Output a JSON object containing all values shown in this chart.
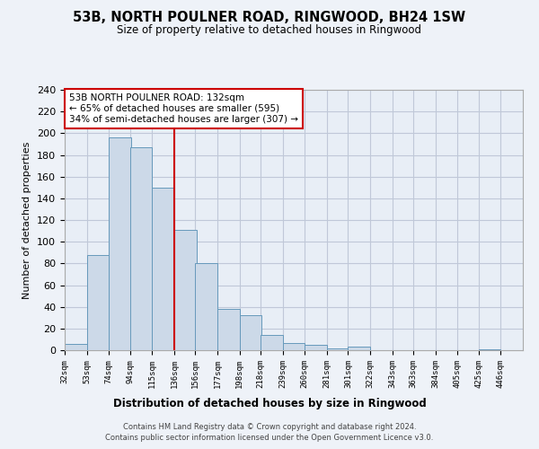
{
  "title": "53B, NORTH POULNER ROAD, RINGWOOD, BH24 1SW",
  "subtitle": "Size of property relative to detached houses in Ringwood",
  "xlabel": "Distribution of detached houses by size in Ringwood",
  "ylabel": "Number of detached properties",
  "bar_left_edges": [
    32,
    53,
    74,
    94,
    115,
    136,
    156,
    177,
    198,
    218,
    239,
    260,
    281,
    301,
    322,
    343,
    363,
    384,
    405,
    425
  ],
  "bar_heights": [
    6,
    88,
    196,
    187,
    150,
    111,
    80,
    38,
    32,
    14,
    7,
    5,
    2,
    3,
    0,
    0,
    0,
    0,
    0,
    1
  ],
  "bin_width": 21,
  "tick_labels": [
    "32sqm",
    "53sqm",
    "74sqm",
    "94sqm",
    "115sqm",
    "136sqm",
    "156sqm",
    "177sqm",
    "198sqm",
    "218sqm",
    "239sqm",
    "260sqm",
    "281sqm",
    "301sqm",
    "322sqm",
    "343sqm",
    "363sqm",
    "384sqm",
    "405sqm",
    "425sqm",
    "446sqm"
  ],
  "tick_positions": [
    32,
    53,
    74,
    94,
    115,
    136,
    156,
    177,
    198,
    218,
    239,
    260,
    281,
    301,
    322,
    343,
    363,
    384,
    405,
    425,
    446
  ],
  "bar_color": "#ccd9e8",
  "bar_edge_color": "#6699bb",
  "vline_x": 136,
  "vline_color": "#cc0000",
  "ylim": [
    0,
    240
  ],
  "yticks": [
    0,
    20,
    40,
    60,
    80,
    100,
    120,
    140,
    160,
    180,
    200,
    220,
    240
  ],
  "annotation_title": "53B NORTH POULNER ROAD: 132sqm",
  "annotation_line1": "← 65% of detached houses are smaller (595)",
  "annotation_line2": "34% of semi-detached houses are larger (307) →",
  "footer_line1": "Contains HM Land Registry data © Crown copyright and database right 2024.",
  "footer_line2": "Contains public sector information licensed under the Open Government Licence v3.0.",
  "background_color": "#eef2f8",
  "plot_bg_color": "#e8eef6",
  "grid_color": "#c0c8d8"
}
